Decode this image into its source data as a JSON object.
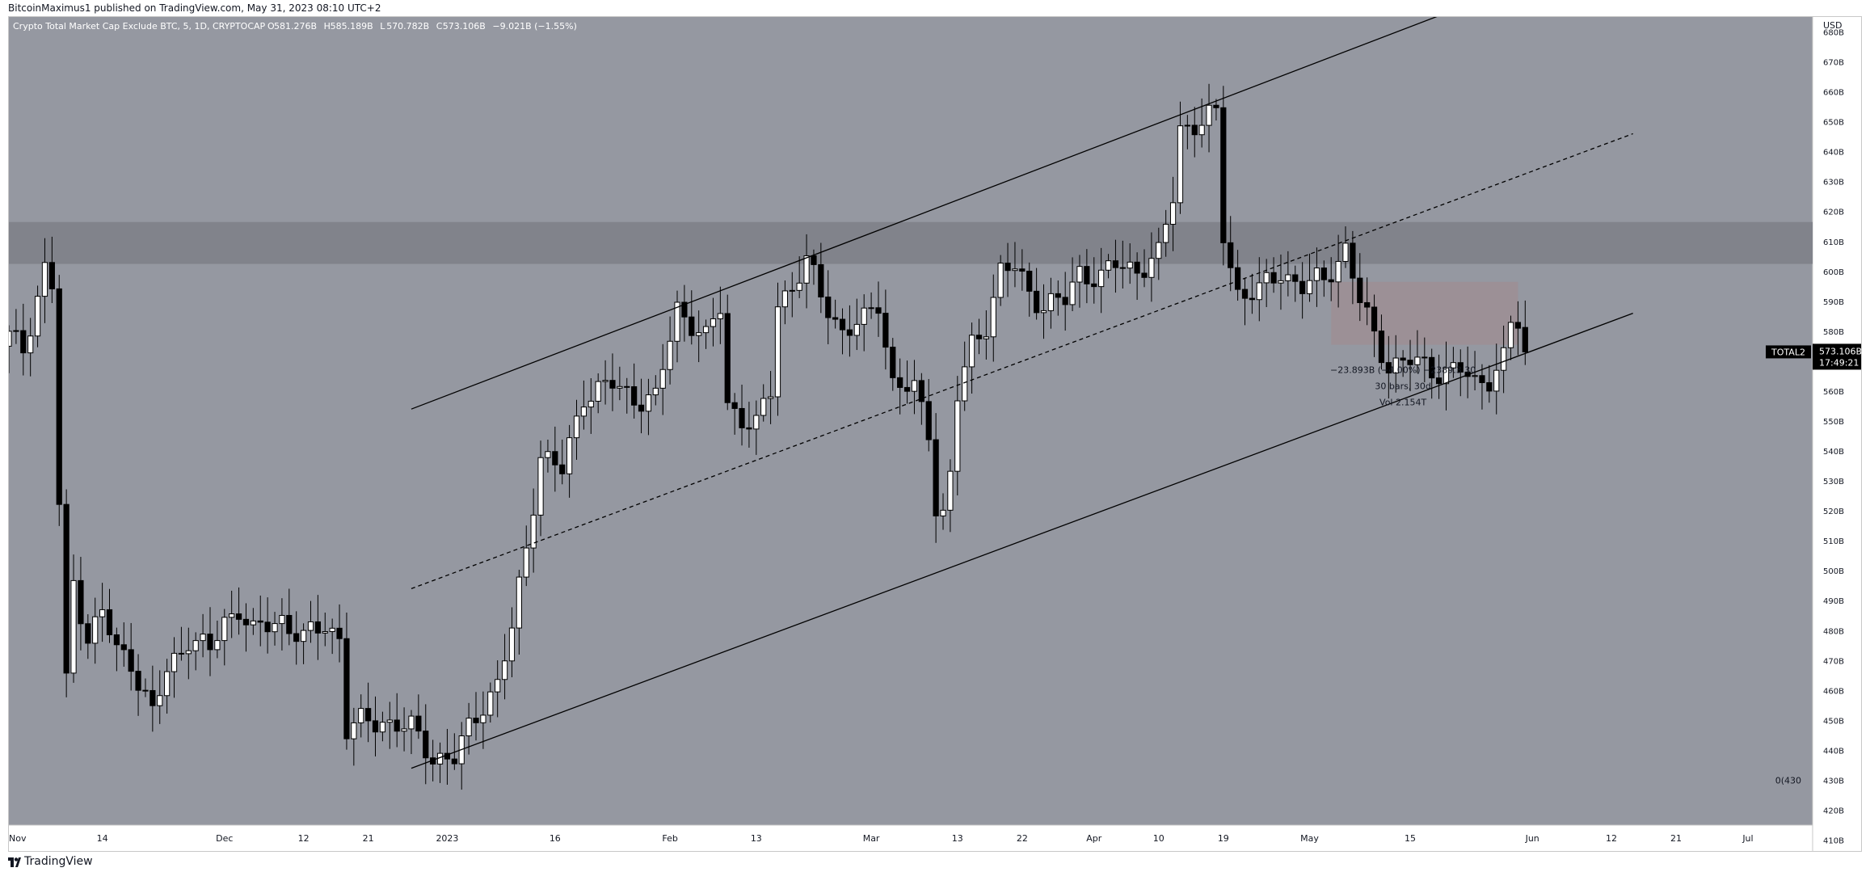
{
  "header": {
    "published": "BitcoinMaximus1 published on TradingView.com, May 31, 2023 08:10 UTC+2"
  },
  "footer": {
    "brand": "TradingView",
    "logo_icon": "tradingview-logo-icon"
  },
  "colors": {
    "background": "#9598a1",
    "candle_up": "#ffffff",
    "candle_down": "#000000",
    "resistance_band": "#81838b",
    "range_box": "#9e8e94",
    "price_tag": "#000000"
  },
  "chart_data": {
    "type": "candlestick",
    "title": "Crypto Total Market Cap Exclude BTC, 5, 1D, CRYPTOCAP",
    "ohlc_readout": [
      {
        "label": "O",
        "value": "581.276B"
      },
      {
        "label": "H",
        "value": "585.189B"
      },
      {
        "label": "L",
        "value": "570.782B"
      },
      {
        "label": "C",
        "value": "573.106B"
      },
      {
        "label": "",
        "value": "−9.021B (−1.55%)"
      }
    ],
    "currency": "USD",
    "y_unit": "billions USD",
    "ylim": [
      415,
      685
    ],
    "y_ticks": [
      {
        "label": "680B",
        "value": 680
      },
      {
        "label": "670B",
        "value": 670
      },
      {
        "label": "660B",
        "value": 660
      },
      {
        "label": "650B",
        "value": 650
      },
      {
        "label": "640B",
        "value": 640
      },
      {
        "label": "630B",
        "value": 630
      },
      {
        "label": "620B",
        "value": 620
      },
      {
        "label": "610B",
        "value": 610
      },
      {
        "label": "600B",
        "value": 600
      },
      {
        "label": "590B",
        "value": 590
      },
      {
        "label": "580B",
        "value": 580
      },
      {
        "label": "570B",
        "value": 570
      },
      {
        "label": "560B",
        "value": 560
      },
      {
        "label": "550B",
        "value": 550
      },
      {
        "label": "540B",
        "value": 540
      },
      {
        "label": "530B",
        "value": 530
      },
      {
        "label": "520B",
        "value": 520
      },
      {
        "label": "510B",
        "value": 510
      },
      {
        "label": "500B",
        "value": 500
      },
      {
        "label": "490B",
        "value": 490
      },
      {
        "label": "480B",
        "value": 480
      },
      {
        "label": "470B",
        "value": 470
      },
      {
        "label": "460B",
        "value": 460
      },
      {
        "label": "450B",
        "value": 450
      },
      {
        "label": "440B",
        "value": 440
      },
      {
        "label": "430B",
        "value": 430
      },
      {
        "label": "420B",
        "value": 420
      },
      {
        "label": "410B",
        "value": 410
      }
    ],
    "x_start": "2022-11-01",
    "x_end": "2023-07-10",
    "x_ticks": [
      {
        "label": "Nov",
        "date": "2022-11-01"
      },
      {
        "label": "14",
        "date": "2022-11-14"
      },
      {
        "label": "Dec",
        "date": "2022-12-01"
      },
      {
        "label": "12",
        "date": "2022-12-12"
      },
      {
        "label": "21",
        "date": "2022-12-21"
      },
      {
        "label": "2023",
        "date": "2023-01-01"
      },
      {
        "label": "16",
        "date": "2023-01-16"
      },
      {
        "label": "Feb",
        "date": "2023-02-01"
      },
      {
        "label": "13",
        "date": "2023-02-13"
      },
      {
        "label": "Mar",
        "date": "2023-03-01"
      },
      {
        "label": "13",
        "date": "2023-03-13"
      },
      {
        "label": "22",
        "date": "2023-03-22"
      },
      {
        "label": "Apr",
        "date": "2023-04-01"
      },
      {
        "label": "10",
        "date": "2023-04-10"
      },
      {
        "label": "19",
        "date": "2023-04-19"
      },
      {
        "label": "May",
        "date": "2023-05-01"
      },
      {
        "label": "15",
        "date": "2023-05-15"
      },
      {
        "label": "Jun",
        "date": "2023-06-01"
      },
      {
        "label": "12",
        "date": "2023-06-12"
      },
      {
        "label": "21",
        "date": "2023-06-21"
      },
      {
        "label": "Jul",
        "date": "2023-07-01"
      }
    ],
    "anchor_closes": [
      [
        "2022-11-01",
        578
      ],
      [
        "2022-11-03",
        574
      ],
      [
        "2022-11-05",
        592
      ],
      [
        "2022-11-06",
        601
      ],
      [
        "2022-11-07",
        595
      ],
      [
        "2022-11-08",
        522
      ],
      [
        "2022-11-09",
        462
      ],
      [
        "2022-11-10",
        496
      ],
      [
        "2022-11-12",
        478
      ],
      [
        "2022-11-14",
        486
      ],
      [
        "2022-11-16",
        473
      ],
      [
        "2022-11-18",
        470
      ],
      [
        "2022-11-21",
        452
      ],
      [
        "2022-11-23",
        466
      ],
      [
        "2022-11-26",
        478
      ],
      [
        "2022-11-29",
        473
      ],
      [
        "2022-12-01",
        483
      ],
      [
        "2022-12-03",
        488
      ],
      [
        "2022-12-05",
        479
      ],
      [
        "2022-12-09",
        484
      ],
      [
        "2022-12-12",
        477
      ],
      [
        "2022-12-15",
        482
      ],
      [
        "2022-12-17",
        478
      ],
      [
        "2022-12-18",
        447
      ],
      [
        "2022-12-20",
        449
      ],
      [
        "2022-12-23",
        450
      ],
      [
        "2022-12-27",
        447
      ],
      [
        "2022-12-30",
        438
      ],
      [
        "2023-01-02",
        437
      ],
      [
        "2023-01-04",
        447
      ],
      [
        "2023-01-06",
        456
      ],
      [
        "2023-01-08",
        462
      ],
      [
        "2023-01-10",
        480
      ],
      [
        "2023-01-12",
        508
      ],
      [
        "2023-01-14",
        539
      ],
      [
        "2023-01-17",
        533
      ],
      [
        "2023-01-20",
        559
      ],
      [
        "2023-01-24",
        562
      ],
      [
        "2023-01-27",
        558
      ],
      [
        "2023-01-30",
        557
      ],
      [
        "2023-02-02",
        588
      ],
      [
        "2023-02-04",
        583
      ],
      [
        "2023-02-06",
        577
      ],
      [
        "2023-02-08",
        588
      ],
      [
        "2023-02-09",
        556
      ],
      [
        "2023-02-11",
        551
      ],
      [
        "2023-02-13",
        548
      ],
      [
        "2023-02-15",
        560
      ],
      [
        "2023-02-16",
        590
      ],
      [
        "2023-02-18",
        595
      ],
      [
        "2023-02-20",
        603
      ],
      [
        "2023-02-22",
        592
      ],
      [
        "2023-02-25",
        580
      ],
      [
        "2023-02-28",
        583
      ],
      [
        "2023-03-02",
        590
      ],
      [
        "2023-03-04",
        563
      ],
      [
        "2023-03-07",
        560
      ],
      [
        "2023-03-09",
        547
      ],
      [
        "2023-03-10",
        522
      ],
      [
        "2023-03-11",
        519
      ],
      [
        "2023-03-12",
        532
      ],
      [
        "2023-03-13",
        558
      ],
      [
        "2023-03-15",
        575
      ],
      [
        "2023-03-17",
        583
      ],
      [
        "2023-03-19",
        600
      ],
      [
        "2023-03-21",
        601
      ],
      [
        "2023-03-23",
        593
      ],
      [
        "2023-03-25",
        589
      ],
      [
        "2023-03-28",
        590
      ],
      [
        "2023-03-30",
        600
      ],
      [
        "2023-04-02",
        598
      ],
      [
        "2023-04-04",
        602
      ],
      [
        "2023-04-07",
        601
      ],
      [
        "2023-04-10",
        605
      ],
      [
        "2023-04-12",
        625
      ],
      [
        "2023-04-13",
        648
      ],
      [
        "2023-04-16",
        650
      ],
      [
        "2023-04-18",
        652
      ],
      [
        "2023-04-19",
        612
      ],
      [
        "2023-04-21",
        593
      ],
      [
        "2023-04-24",
        593
      ],
      [
        "2023-04-27",
        600
      ],
      [
        "2023-04-30",
        595
      ],
      [
        "2023-05-03",
        597
      ],
      [
        "2023-05-06",
        608
      ],
      [
        "2023-05-08",
        590
      ],
      [
        "2023-05-10",
        578
      ],
      [
        "2023-05-12",
        569
      ],
      [
        "2023-05-15",
        570
      ],
      [
        "2023-05-18",
        567
      ],
      [
        "2023-05-22",
        567
      ],
      [
        "2023-05-24",
        562
      ],
      [
        "2023-05-26",
        565
      ],
      [
        "2023-05-28",
        571
      ],
      [
        "2023-05-29",
        582
      ],
      [
        "2023-05-30",
        582
      ],
      [
        "2023-05-31",
        573.106
      ]
    ],
    "trendlines": [
      {
        "type": "solid",
        "from": {
          "date": "2022-12-27",
          "value": 554
        },
        "to": {
          "date": "2023-05-24",
          "value": 690
        }
      },
      {
        "type": "dashed",
        "from": {
          "date": "2022-12-27",
          "value": 494
        },
        "to": {
          "date": "2023-06-15",
          "value": 646
        }
      },
      {
        "type": "solid",
        "from": {
          "date": "2022-12-27",
          "value": 434
        },
        "to": {
          "date": "2023-06-15",
          "value": 586
        }
      }
    ],
    "resistance_zone": {
      "low": 602.5,
      "high": 616.5
    },
    "range_box": {
      "from": "2023-05-04",
      "to": "2023-05-30",
      "low": 575.5,
      "high": 596.5
    },
    "measure_annotation": {
      "lines": [
        "−23.893B (−4.00%) −2389.3 30",
        "30 bars, 30d",
        "Vol 2.154T"
      ],
      "date": "2023-05-14",
      "value": 566
    },
    "fib_label": {
      "text": "0(430",
      "value": 430
    },
    "last_price": {
      "symbol": "TOTAL2",
      "price": "573.106B",
      "countdown": "17:49:21",
      "value": 573.106
    }
  }
}
